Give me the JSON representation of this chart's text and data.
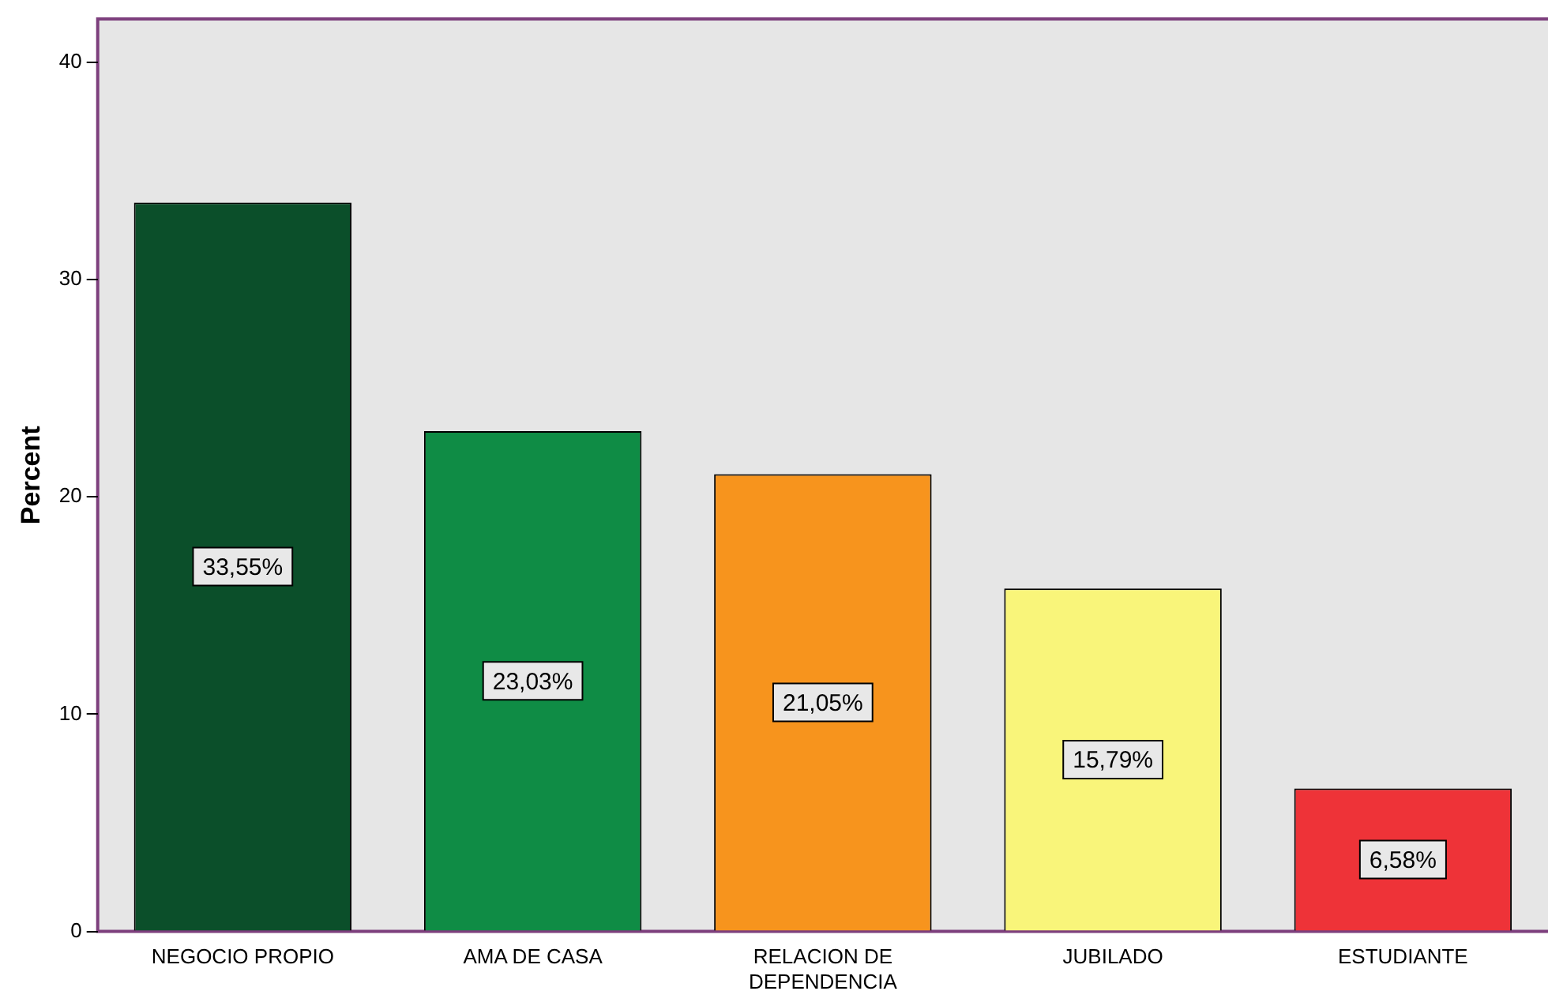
{
  "chart_data": {
    "type": "bar",
    "ylabel": "Percent",
    "categories": [
      "NEGOCIO PROPIO",
      "AMA DE CASA",
      "RELACION DE DEPENDENCIA",
      "JUBILADO",
      "ESTUDIANTE"
    ],
    "values": [
      33.55,
      23.03,
      21.05,
      15.79,
      6.58
    ],
    "colors": [
      "#0b4f2a",
      "#0f8c45",
      "#f7941d",
      "#f9f57a",
      "#ee3338"
    ],
    "value_labels": [
      "33,55%",
      "23,03%",
      "21,05%",
      "15,79%",
      "6,58%"
    ],
    "ylim": [
      0,
      42
    ],
    "yticks": [
      0,
      10,
      20,
      30,
      40
    ],
    "grid": false,
    "legend": false
  }
}
